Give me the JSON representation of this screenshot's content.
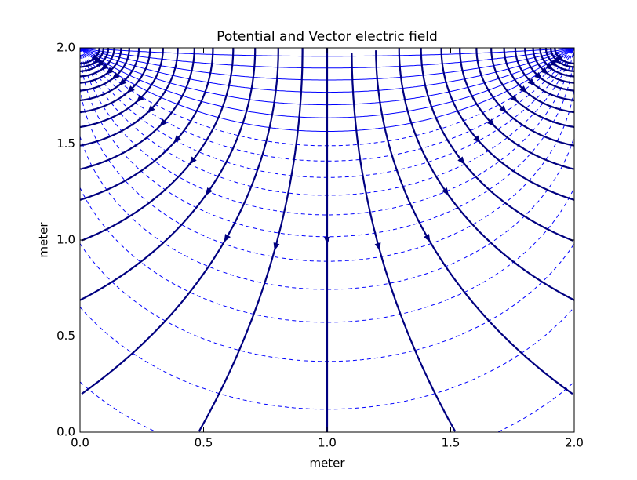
{
  "chart_data": {
    "type": "streamplot",
    "title": "Potential and  Vector electric field",
    "xlabel": "meter",
    "ylabel": "meter",
    "xlim": [
      0,
      2
    ],
    "ylim": [
      0,
      2
    ],
    "xticks": [
      {
        "value": 0,
        "label": "0.0"
      },
      0.5,
      {
        "value": 1,
        "label": "1.0"
      },
      1.5,
      {
        "value": 2,
        "label": "2.0"
      }
    ],
    "yticks": [
      {
        "value": 0,
        "label": "0.0"
      },
      0.5,
      {
        "value": 1,
        "label": "1.0"
      },
      1.5,
      {
        "value": 2,
        "label": "2.0"
      }
    ],
    "stream_color": "#000080",
    "contour_color": "#0000ff"
  }
}
